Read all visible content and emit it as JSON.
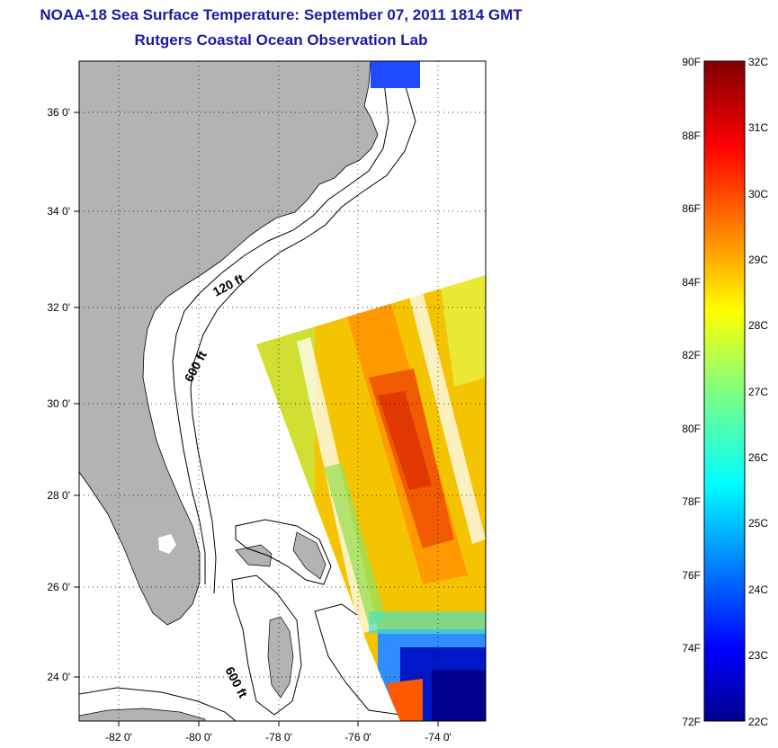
{
  "header": {
    "title": "NOAA-18 Sea Surface Temperature:  September 07, 2011 1814 GMT",
    "subtitle": "Rutgers Coastal Ocean Observation Lab"
  },
  "map": {
    "lat_labels": [
      "36 0'",
      "34 0'",
      "32 0'",
      "30 0'",
      "28 0'",
      "26 0'",
      "24 0'"
    ],
    "lon_labels": [
      "-82 0'",
      "-80 0'",
      "-78 0'",
      "-76 0'",
      "-74 0'"
    ],
    "contour_labels": [
      "120 ft",
      "600 ft",
      "600 ft"
    ],
    "land_color": "#b3b3b3",
    "ocean_color": "#ffffff"
  },
  "colorbar": {
    "fahrenheit_labels": [
      "90F",
      "88F",
      "86F",
      "84F",
      "82F",
      "80F",
      "78F",
      "76F",
      "74F",
      "72F"
    ],
    "celsius_labels": [
      "32C",
      "31C",
      "30C",
      "29C",
      "28C",
      "27C",
      "26C",
      "25C",
      "24C",
      "23C",
      "22C"
    ],
    "range_c": [
      22,
      32
    ],
    "range_f": [
      72,
      90
    ],
    "colormap": "jet"
  }
}
